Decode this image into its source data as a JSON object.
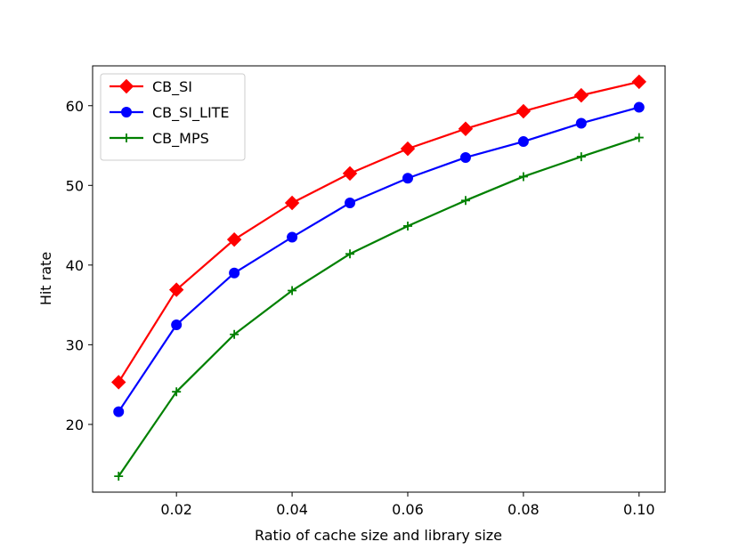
{
  "chart_data": {
    "type": "line",
    "title": "",
    "xlabel": "Ratio of cache size and library size",
    "ylabel": "Hit rate",
    "xlim": [
      0.0055,
      0.1045
    ],
    "ylim": [
      11.5,
      65.0
    ],
    "grid": false,
    "legend_position": "top-left",
    "x": [
      0.01,
      0.02,
      0.03,
      0.04,
      0.05,
      0.06,
      0.07,
      0.08,
      0.09,
      0.1
    ],
    "x_ticks": [
      0.02,
      0.04,
      0.06,
      0.08,
      0.1
    ],
    "x_tick_labels": [
      "0.02",
      "0.04",
      "0.06",
      "0.08",
      "0.10"
    ],
    "y_ticks": [
      20,
      30,
      40,
      50,
      60
    ],
    "y_tick_labels": [
      "20",
      "30",
      "40",
      "50",
      "60"
    ],
    "series": [
      {
        "name": "CB_SI",
        "color": "#ff0000",
        "marker": "diamond",
        "values": [
          25.3,
          36.9,
          43.2,
          47.8,
          51.5,
          54.6,
          57.1,
          59.3,
          61.3,
          63.0
        ]
      },
      {
        "name": "CB_SI_LITE",
        "color": "#0000ff",
        "marker": "circle",
        "values": [
          21.6,
          32.5,
          39.0,
          43.5,
          47.8,
          50.9,
          53.5,
          55.5,
          57.8,
          59.8
        ]
      },
      {
        "name": "CB_MPS",
        "color": "#008000",
        "marker": "plus",
        "values": [
          13.5,
          24.1,
          31.3,
          36.8,
          41.4,
          44.9,
          48.1,
          51.1,
          53.6,
          56.0
        ]
      }
    ]
  }
}
